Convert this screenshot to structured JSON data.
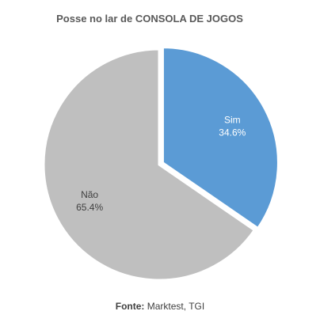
{
  "chart_data": {
    "type": "pie",
    "title": "Posse no lar de CONSOLA DE JOGOS",
    "slices": [
      {
        "label": "Sim",
        "value": 34.6,
        "display": "34.6%",
        "color": "#5B9BD5",
        "exploded": true
      },
      {
        "label": "Não",
        "value": 65.4,
        "display": "65.4%",
        "color": "#BFBFBF",
        "exploded": false
      }
    ]
  },
  "footer": {
    "prefix": "Fonte:",
    "text": " Marktest, TGI"
  }
}
